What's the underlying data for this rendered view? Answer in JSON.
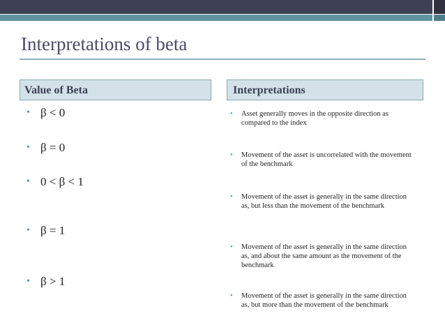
{
  "title": "Interpretations of beta",
  "columns": {
    "left": {
      "header": "Value of Beta",
      "items": [
        "β < 0",
        "β = 0",
        "0 < β < 1",
        "β = 1",
        "β > 1"
      ]
    },
    "right": {
      "header": "Interpretations",
      "items": [
        "Asset generally moves in the opposite direction as compared to the index",
        "Movement of the asset is uncorrelated with the movement of the benchmark",
        "Movement of the asset is generally in the same direction as, but less than the movement of the benchmark",
        "Movement of the asset is generally in the same direction as, and about the same amount as the movement of the benchmark",
        "Movement of the asset is generally in the same direction as, but more than the movement of the benchmark"
      ]
    }
  }
}
